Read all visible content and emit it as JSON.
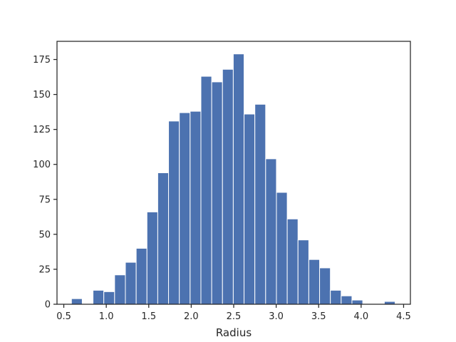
{
  "chart_data": {
    "type": "bar",
    "subtype": "histogram",
    "xlabel": "Radius",
    "ylabel": "",
    "title": "",
    "bar_color": "#4c72b0",
    "bar_edge_color": "#ffffff",
    "axis_color": "#262626",
    "grid": false,
    "xlim": [
      0.42,
      4.58
    ],
    "ylim": [
      0,
      188
    ],
    "x_ticks": [
      0.5,
      1.0,
      1.5,
      2.0,
      2.5,
      3.0,
      3.5,
      4.0,
      4.5
    ],
    "x_tick_labels": [
      "0.5",
      "1.0",
      "1.5",
      "2.0",
      "2.5",
      "3.0",
      "3.5",
      "4.0",
      "4.5"
    ],
    "y_ticks": [
      0,
      25,
      50,
      75,
      100,
      125,
      150,
      175
    ],
    "y_tick_labels": [
      "0",
      "25",
      "50",
      "75",
      "100",
      "125",
      "150",
      "175"
    ],
    "bins": [
      {
        "x0": 0.59,
        "x1": 0.717,
        "count": 4
      },
      {
        "x0": 0.717,
        "x1": 0.844,
        "count": 0
      },
      {
        "x0": 0.844,
        "x1": 0.971,
        "count": 10
      },
      {
        "x0": 0.971,
        "x1": 1.098,
        "count": 9
      },
      {
        "x0": 1.098,
        "x1": 1.225,
        "count": 21
      },
      {
        "x0": 1.225,
        "x1": 1.352,
        "count": 30
      },
      {
        "x0": 1.352,
        "x1": 1.479,
        "count": 40
      },
      {
        "x0": 1.479,
        "x1": 1.606,
        "count": 66
      },
      {
        "x0": 1.606,
        "x1": 1.733,
        "count": 94
      },
      {
        "x0": 1.733,
        "x1": 1.86,
        "count": 131
      },
      {
        "x0": 1.86,
        "x1": 1.987,
        "count": 137
      },
      {
        "x0": 1.987,
        "x1": 2.114,
        "count": 138
      },
      {
        "x0": 2.114,
        "x1": 2.241,
        "count": 163
      },
      {
        "x0": 2.241,
        "x1": 2.368,
        "count": 159
      },
      {
        "x0": 2.368,
        "x1": 2.495,
        "count": 168
      },
      {
        "x0": 2.495,
        "x1": 2.622,
        "count": 179
      },
      {
        "x0": 2.622,
        "x1": 2.749,
        "count": 136
      },
      {
        "x0": 2.749,
        "x1": 2.876,
        "count": 143
      },
      {
        "x0": 2.876,
        "x1": 3.003,
        "count": 104
      },
      {
        "x0": 3.003,
        "x1": 3.13,
        "count": 80
      },
      {
        "x0": 3.13,
        "x1": 3.257,
        "count": 61
      },
      {
        "x0": 3.257,
        "x1": 3.384,
        "count": 46
      },
      {
        "x0": 3.384,
        "x1": 3.511,
        "count": 32
      },
      {
        "x0": 3.511,
        "x1": 3.638,
        "count": 26
      },
      {
        "x0": 3.638,
        "x1": 3.765,
        "count": 10
      },
      {
        "x0": 3.765,
        "x1": 3.892,
        "count": 6
      },
      {
        "x0": 3.892,
        "x1": 4.019,
        "count": 3
      },
      {
        "x0": 4.019,
        "x1": 4.146,
        "count": 0
      },
      {
        "x0": 4.146,
        "x1": 4.273,
        "count": 0
      },
      {
        "x0": 4.273,
        "x1": 4.4,
        "count": 2
      }
    ]
  }
}
